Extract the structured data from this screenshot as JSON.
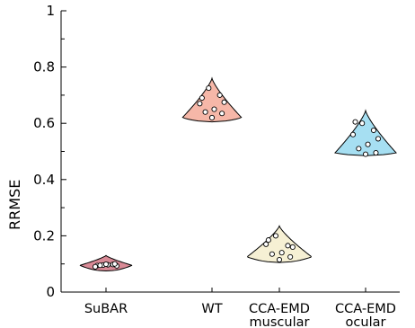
{
  "chart_data": {
    "type": "violin",
    "title": "",
    "xlabel": "",
    "ylabel": "RRMSE",
    "ylim": [
      0,
      1
    ],
    "yticks": [
      0,
      0.2,
      0.4,
      0.6,
      0.8,
      1
    ],
    "ytick_labels": [
      "0",
      "0.2",
      "0.4",
      "0.6",
      "0.8",
      "1"
    ],
    "grid": false,
    "categories": [
      {
        "key": "subar",
        "lines": [
          "SuBAR"
        ],
        "color": "#d98a96",
        "values": [
          0.094,
          0.096,
          0.098,
          0.09,
          0.093,
          0.097,
          0.095,
          0.1,
          0.099
        ],
        "range": [
          0.075,
          0.13
        ],
        "peak": 0.095
      },
      {
        "key": "wt",
        "lines": [
          "WT"
        ],
        "color": "#f6b7a8",
        "values": [
          0.69,
          0.725,
          0.7,
          0.67,
          0.675,
          0.65,
          0.64,
          0.635,
          0.62
        ],
        "range": [
          0.605,
          0.76
        ],
        "peak": 0.62
      },
      {
        "key": "cca-emd-muscular",
        "lines": [
          "CCA-EMD",
          "muscular"
        ],
        "color": "#f6f0d4",
        "values": [
          0.185,
          0.2,
          0.165,
          0.17,
          0.16,
          0.14,
          0.135,
          0.125,
          0.115
        ],
        "range": [
          0.105,
          0.235
        ],
        "peak": 0.125
      },
      {
        "key": "cca-emd-ocular",
        "lines": [
          "CCA-EMD",
          "ocular"
        ],
        "color": "#a6dff2",
        "values": [
          0.605,
          0.6,
          0.575,
          0.56,
          0.545,
          0.525,
          0.51,
          0.495,
          0.49
        ],
        "range": [
          0.485,
          0.645
        ],
        "peak": 0.495
      }
    ]
  }
}
